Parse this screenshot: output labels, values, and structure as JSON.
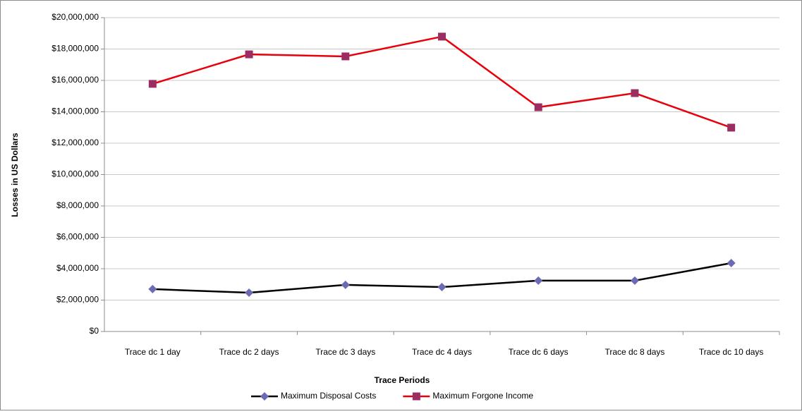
{
  "chart_data": {
    "type": "line",
    "x_label": "Trace Periods",
    "y_label": "Losses in US Dollars",
    "categories": [
      "Trace dc 1 day",
      "Trace dc 2 days",
      "Trace dc 3 days",
      "Trace dc 4 days",
      "Trace dc 6 days",
      "Trace dc 8 days",
      "Trace dc 10 days"
    ],
    "series": [
      {
        "name": "Maximum Disposal Costs",
        "color": "#000000",
        "marker": "diamond",
        "marker_color": "#6b6bb3",
        "values": [
          2700000,
          2470000,
          2970000,
          2830000,
          3240000,
          3240000,
          4360000
        ]
      },
      {
        "name": "Maximum Forgone Income",
        "color": "#e8000b",
        "marker": "square",
        "marker_color": "#9b2d62",
        "values": [
          15780000,
          17660000,
          17530000,
          18790000,
          14290000,
          15190000,
          12990000
        ]
      }
    ],
    "ylim": [
      0,
      20000000
    ],
    "yticks": [
      {
        "value": 0,
        "label": "$0"
      },
      {
        "value": 2000000,
        "label": "$2,000,000"
      },
      {
        "value": 4000000,
        "label": "$4,000,000"
      },
      {
        "value": 6000000,
        "label": "$6,000,000"
      },
      {
        "value": 8000000,
        "label": "$8,000,000"
      },
      {
        "value": 10000000,
        "label": "$10,000,000"
      },
      {
        "value": 12000000,
        "label": "$12,000,000"
      },
      {
        "value": 14000000,
        "label": "$14,000,000"
      },
      {
        "value": 16000000,
        "label": "$16,000,000"
      },
      {
        "value": 18000000,
        "label": "$18,000,000"
      },
      {
        "value": 20000000,
        "label": "$20,000,000"
      }
    ],
    "grid": true,
    "legend": "bottom"
  }
}
